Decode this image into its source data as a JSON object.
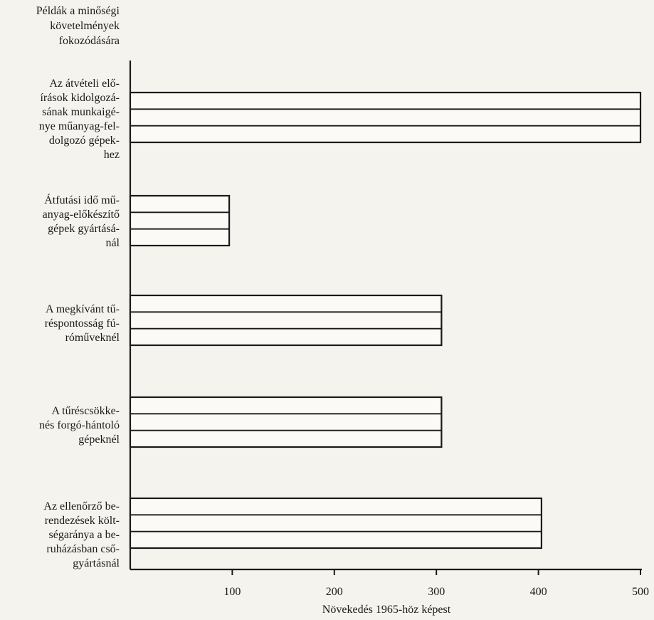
{
  "chart_data": {
    "type": "bar",
    "orientation": "horizontal",
    "ytitle_lines": [
      "Példák a minőségi",
      "követelmények",
      "fokozódására"
    ],
    "xlabel": "Növekedés 1965-höz képest",
    "xlim": [
      0,
      500
    ],
    "xticks": [
      100,
      200,
      300,
      400,
      500
    ],
    "grid": false,
    "categories": [
      {
        "lines": [
          "Az átvételi elő-",
          "írások kidolgozá-",
          "sának munkaigé-",
          "nye műanyag-fel-",
          "dolgozó gépek-",
          "hez"
        ],
        "value": 500
      },
      {
        "lines": [
          "Átfutási idő mű-",
          "anyag-előkészítő",
          "gépek gyártásá-",
          "nál"
        ],
        "value": 97
      },
      {
        "lines": [
          "A megkívánt tű-",
          "réspontosság fú-",
          "róműveknél"
        ],
        "value": 305
      },
      {
        "lines": [
          "A tűréscsökke-",
          "nés forgó-hántoló",
          "gépeknél"
        ],
        "value": 305
      },
      {
        "lines": [
          "Az ellenőrző be-",
          "rendezések költ-",
          "ségaránya a be-",
          "ruházásban cső-",
          "gyártásnál"
        ],
        "value": 403
      }
    ]
  }
}
